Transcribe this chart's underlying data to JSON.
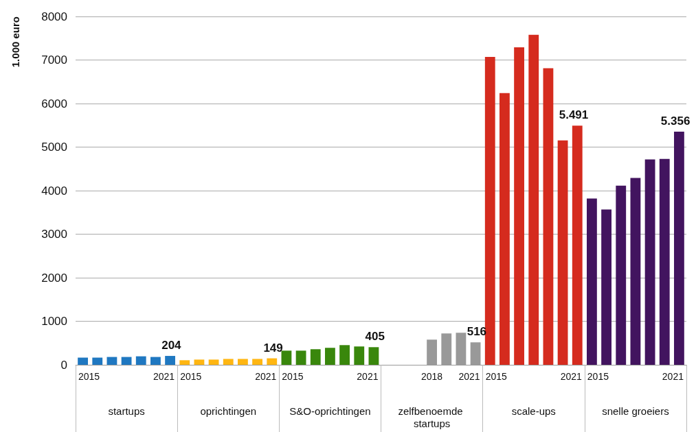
{
  "chart_data": {
    "type": "bar",
    "ylabel": "1.000 euro",
    "categories": [
      "2015",
      null,
      null,
      null,
      null,
      null,
      "2021",
      "2015",
      null,
      null,
      null,
      null,
      null,
      "2021",
      "2015",
      null,
      null,
      null,
      null,
      null,
      "2021",
      null,
      null,
      null,
      "2018",
      null,
      null,
      "2021",
      "2015",
      null,
      null,
      null,
      null,
      null,
      "2021",
      "2015",
      null,
      null,
      null,
      null,
      null,
      "2021"
    ],
    "values": [
      165,
      165,
      180,
      180,
      195,
      180,
      204,
      105,
      120,
      120,
      135,
      135,
      135,
      149,
      325,
      325,
      358,
      390,
      452,
      421,
      405,
      null,
      null,
      null,
      578,
      720,
      736,
      516,
      7070,
      6240,
      7290,
      7580,
      6810,
      5155,
      5491,
      3820,
      3565,
      4115,
      4290,
      4715,
      4730,
      5356
    ],
    "value_labels": [
      null,
      null,
      null,
      null,
      null,
      null,
      "204",
      null,
      null,
      null,
      null,
      null,
      null,
      "149",
      null,
      null,
      null,
      null,
      null,
      null,
      "405",
      null,
      null,
      null,
      null,
      null,
      null,
      "516",
      null,
      null,
      null,
      null,
      null,
      null,
      "5.491",
      null,
      null,
      null,
      null,
      null,
      null,
      "5.356"
    ],
    "colors": [
      "#1f78c1",
      "#1f78c1",
      "#1f78c1",
      "#1f78c1",
      "#1f78c1",
      "#1f78c1",
      "#1f78c1",
      "#ffb612",
      "#ffb612",
      "#ffb612",
      "#ffb612",
      "#ffb612",
      "#ffb612",
      "#ffb612",
      "#39870c",
      "#39870c",
      "#39870c",
      "#39870c",
      "#39870c",
      "#39870c",
      "#39870c",
      "#999999",
      "#999999",
      "#999999",
      "#999999",
      "#999999",
      "#999999",
      "#999999",
      "#d52b1e",
      "#d52b1e",
      "#d52b1e",
      "#d52b1e",
      "#d52b1e",
      "#d52b1e",
      "#d52b1e",
      "#42145f",
      "#42145f",
      "#42145f",
      "#42145f",
      "#42145f",
      "#42145f",
      "#42145f"
    ],
    "annotations": [
      "startups",
      "oprichtingen",
      "S&O-oprichtingen",
      "zelfbenoemde startups",
      "scale-ups",
      "snelle groeiers"
    ],
    "ylim": [
      0,
      8000
    ],
    "yticks": [
      0,
      1000,
      2000,
      3000,
      4000,
      5000,
      6000,
      7000,
      8000
    ],
    "grid": "y"
  }
}
